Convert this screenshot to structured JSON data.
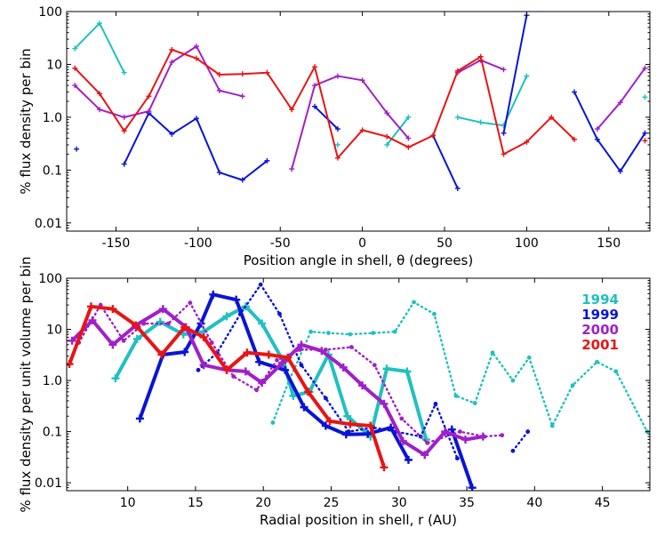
{
  "colors": {
    "c1994": "#20c0c0",
    "c1999": "#0a14d6",
    "c2000": "#a020c8",
    "c2001": "#e81414"
  },
  "chart_data": [
    {
      "type": "line",
      "title": "",
      "xlabel": "Position angle in shell, θ (degrees)",
      "ylabel": "% flux density per bin",
      "xlim": [
        -180,
        175
      ],
      "ylim": [
        0.007,
        100
      ],
      "yscale": "log",
      "xticks": [
        "-150",
        "-100",
        "-50",
        "0",
        "50",
        "100",
        "150"
      ],
      "xtick_values": [
        -150,
        -100,
        -50,
        0,
        50,
        100,
        150
      ],
      "yticks": [
        "0.01",
        "0.1",
        "1.0",
        "10",
        "100"
      ],
      "ytick_values": [
        0.01,
        0.1,
        1,
        10,
        100
      ],
      "series": [
        {
          "name": "1994",
          "color_key": "c1994",
          "segments": [
            [
              [
                -175,
                20
              ],
              [
                -160,
                60
              ],
              [
                -145,
                7
              ]
            ],
            [
              [
                -15,
                0.3
              ]
            ],
            [
              [
                15,
                0.3
              ],
              [
                28,
                1.0
              ]
            ],
            [
              [
                58,
                1.0
              ],
              [
                72,
                0.8
              ],
              [
                86,
                0.7
              ],
              [
                100,
                6
              ]
            ],
            [
              [
                172,
                2.4
              ]
            ]
          ]
        },
        {
          "name": "1999",
          "color_key": "c1999",
          "segments": [
            [
              [
                -174,
                0.25
              ]
            ],
            [
              [
                -145,
                0.13
              ],
              [
                -130,
                1.2
              ],
              [
                -116,
                0.48
              ],
              [
                -101,
                0.95
              ],
              [
                -87,
                0.09
              ],
              [
                -73,
                0.065
              ],
              [
                -58,
                0.15
              ]
            ],
            [
              [
                -29,
                1.6
              ],
              [
                -15,
                0.6
              ]
            ],
            [
              [
                43,
                0.45
              ],
              [
                58,
                0.045
              ]
            ],
            [
              [
                86,
                0.5
              ],
              [
                100,
                85
              ]
            ],
            [
              [
                129,
                3.0
              ],
              [
                143,
                0.38
              ],
              [
                157,
                0.095
              ],
              [
                172,
                0.5
              ]
            ]
          ]
        },
        {
          "name": "2000",
          "color_key": "c2000",
          "segments": [
            [
              [
                -175,
                4
              ],
              [
                -160,
                1.4
              ],
              [
                -145,
                1.0
              ],
              [
                -130,
                1.3
              ],
              [
                -116,
                11
              ],
              [
                -101,
                22
              ],
              [
                -87,
                3.2
              ],
              [
                -73,
                2.5
              ]
            ],
            [
              [
                -43,
                0.105
              ],
              [
                -29,
                4
              ],
              [
                -15,
                6
              ],
              [
                0,
                5
              ],
              [
                15,
                1.2
              ],
              [
                28,
                0.4
              ]
            ],
            [
              [
                58,
                7.0
              ],
              [
                72,
                12
              ],
              [
                86,
                8
              ]
            ],
            [
              [
                143,
                0.6
              ],
              [
                157,
                1.9
              ],
              [
                172,
                8.5
              ]
            ]
          ]
        },
        {
          "name": "2001",
          "color_key": "c2001",
          "segments": [
            [
              [
                -175,
                8.5
              ],
              [
                -160,
                2.8
              ],
              [
                -145,
                0.55
              ],
              [
                -130,
                2.5
              ],
              [
                -116,
                19
              ],
              [
                -101,
                13
              ],
              [
                -87,
                6.4
              ],
              [
                -73,
                6.6
              ],
              [
                -58,
                7
              ],
              [
                -43,
                1.4
              ],
              [
                -29,
                9
              ],
              [
                -15,
                0.17
              ],
              [
                0,
                0.57
              ],
              [
                15,
                0.43
              ],
              [
                28,
                0.27
              ],
              [
                43,
                0.45
              ],
              [
                58,
                7.5
              ],
              [
                72,
                14
              ],
              [
                86,
                0.2
              ],
              [
                100,
                0.34
              ],
              [
                115,
                1.0
              ],
              [
                129,
                0.38
              ]
            ],
            [
              [
                172,
                0.36
              ]
            ]
          ]
        }
      ]
    },
    {
      "type": "line",
      "title": "",
      "xlabel": "Radial position in shell, r (AU)",
      "ylabel": "% flux density per unit volume per bin",
      "xlim": [
        5.5,
        48.5
      ],
      "ylim": [
        0.007,
        100
      ],
      "yscale": "log",
      "xticks": [
        "10",
        "15",
        "20",
        "25",
        "30",
        "35",
        "40",
        "45"
      ],
      "xtick_values": [
        10,
        15,
        20,
        25,
        30,
        35,
        40,
        45
      ],
      "yticks": [
        "0.01",
        "0.1",
        "1.0",
        "10",
        "100"
      ],
      "ytick_values": [
        0.01,
        0.1,
        1,
        10,
        100
      ],
      "legend": {
        "position": "top-right",
        "entries": [
          "1994",
          "1999",
          "2000",
          "2001"
        ]
      },
      "series": [
        {
          "name": "1994",
          "color_key": "c1994",
          "style": "solid",
          "points": [
            [
              9.1,
              1.1
            ],
            [
              10.7,
              6.5
            ],
            [
              12.4,
              14
            ],
            [
              14.1,
              8
            ],
            [
              15.6,
              9
            ],
            [
              17.3,
              18
            ],
            [
              18.7,
              28
            ],
            [
              19.9,
              13
            ],
            [
              21.5,
              2.3
            ],
            [
              22.2,
              0.5
            ],
            [
              23.4,
              0.6
            ],
            [
              24.8,
              3.2
            ],
            [
              26.2,
              0.2
            ],
            [
              27.9,
              0.08
            ],
            [
              29.1,
              1.7
            ],
            [
              30.6,
              1.5
            ],
            [
              32.0,
              0.07
            ]
          ]
        },
        {
          "name": "1994 dotted",
          "color_key": "c1994",
          "style": "dotted",
          "points": [
            [
              20.7,
              0.15
            ],
            [
              21.9,
              1.0
            ],
            [
              23.5,
              9
            ],
            [
              24.8,
              8.5
            ],
            [
              26.4,
              8
            ],
            [
              28.1,
              8.5
            ],
            [
              29.7,
              9
            ],
            [
              31.1,
              34
            ],
            [
              32.6,
              20
            ],
            [
              34.2,
              0.5
            ],
            [
              35.6,
              0.36
            ],
            [
              36.9,
              3.5
            ],
            [
              38.4,
              1.0
            ],
            [
              39.6,
              2.8
            ],
            [
              41.3,
              0.13
            ],
            [
              42.8,
              0.8
            ],
            [
              44.6,
              2.3
            ],
            [
              46.0,
              1.5
            ],
            [
              48.3,
              0.1
            ]
          ]
        },
        {
          "name": "1999",
          "color_key": "c1999",
          "style": "solid",
          "points": [
            [
              10.9,
              0.18
            ],
            [
              12.6,
              3.2
            ],
            [
              14.2,
              3.6
            ],
            [
              15.4,
              13
            ],
            [
              16.3,
              48
            ],
            [
              18.0,
              38
            ],
            [
              19.7,
              2.3
            ],
            [
              21.6,
              1.6
            ],
            [
              23.0,
              0.3
            ],
            [
              24.6,
              0.13
            ],
            [
              26.1,
              0.088
            ],
            [
              27.7,
              0.09
            ],
            [
              29.4,
              0.12
            ],
            [
              30.7,
              0.028
            ]
          ]
        },
        {
          "name": "1999 dotted",
          "color_key": "c1999",
          "style": "dotted",
          "points": [
            [
              15.2,
              1.6
            ],
            [
              16.6,
              3.5
            ],
            [
              18.3,
              20
            ],
            [
              19.8,
              75
            ],
            [
              21.2,
              20
            ],
            [
              22.8,
              2.0
            ],
            [
              24.6,
              0.45
            ],
            [
              26.3,
              0.1
            ],
            [
              28.1,
              0.12
            ],
            [
              29.8,
              0.1
            ],
            [
              31.6,
              0.08
            ],
            [
              32.7,
              0.35
            ],
            [
              34.3,
              0.03
            ]
          ]
        },
        {
          "name": "1999 tail",
          "color_key": "c1999",
          "style": "solid",
          "points": [
            [
              33.9,
              0.11
            ],
            [
              35.4,
              0.008
            ]
          ]
        },
        {
          "name": "1999 tail dotted",
          "color_key": "c1999",
          "style": "dotted",
          "points": [
            [
              38.4,
              0.042
            ],
            [
              39.5,
              0.1
            ]
          ]
        },
        {
          "name": "2000",
          "color_key": "c2000",
          "style": "solid",
          "points": [
            [
              5.9,
              6
            ],
            [
              7.4,
              15
            ],
            [
              8.9,
              5
            ],
            [
              10.6,
              12
            ],
            [
              12.6,
              25
            ],
            [
              14.3,
              11
            ],
            [
              15.6,
              2.0
            ],
            [
              17.3,
              1.6
            ],
            [
              18.7,
              1.5
            ],
            [
              19.9,
              0.9
            ],
            [
              21.4,
              2.2
            ],
            [
              22.8,
              5
            ],
            [
              24.3,
              3.8
            ],
            [
              25.9,
              1.8
            ],
            [
              27.3,
              0.8
            ],
            [
              28.9,
              0.35
            ],
            [
              30.3,
              0.065
            ],
            [
              31.9,
              0.035
            ],
            [
              33.4,
              0.1
            ],
            [
              34.9,
              0.07
            ],
            [
              36.2,
              0.08
            ]
          ]
        },
        {
          "name": "2000 dotted",
          "color_key": "c2000",
          "style": "dotted",
          "points": [
            [
              6.4,
              5.5
            ],
            [
              8.0,
              30
            ],
            [
              9.7,
              6
            ],
            [
              11.2,
              13
            ],
            [
              13.0,
              13
            ],
            [
              14.6,
              33
            ],
            [
              16.2,
              5.5
            ],
            [
              17.8,
              1.2
            ],
            [
              19.5,
              0.65
            ],
            [
              21.0,
              2.5
            ],
            [
              22.7,
              4
            ],
            [
              24.6,
              4
            ],
            [
              26.5,
              4.5
            ],
            [
              28.2,
              2.0
            ],
            [
              30.2,
              0.18
            ],
            [
              32.1,
              0.06
            ],
            [
              34.5,
              0.1
            ],
            [
              36.3,
              0.08
            ],
            [
              37.6,
              0.085
            ]
          ]
        },
        {
          "name": "2001",
          "color_key": "c2001",
          "style": "solid",
          "points": [
            [
              5.7,
              2.1
            ],
            [
              7.3,
              28
            ],
            [
              8.9,
              25
            ],
            [
              10.6,
              12
            ],
            [
              12.5,
              3.2
            ],
            [
              14.2,
              11
            ],
            [
              15.6,
              7
            ],
            [
              17.3,
              1.6
            ],
            [
              18.8,
              3.5
            ],
            [
              20.4,
              3.2
            ],
            [
              21.8,
              2.8
            ],
            [
              23.3,
              0.6
            ],
            [
              24.9,
              0.16
            ],
            [
              26.4,
              0.14
            ],
            [
              27.9,
              0.13
            ],
            [
              28.9,
              0.02
            ]
          ]
        }
      ]
    }
  ]
}
